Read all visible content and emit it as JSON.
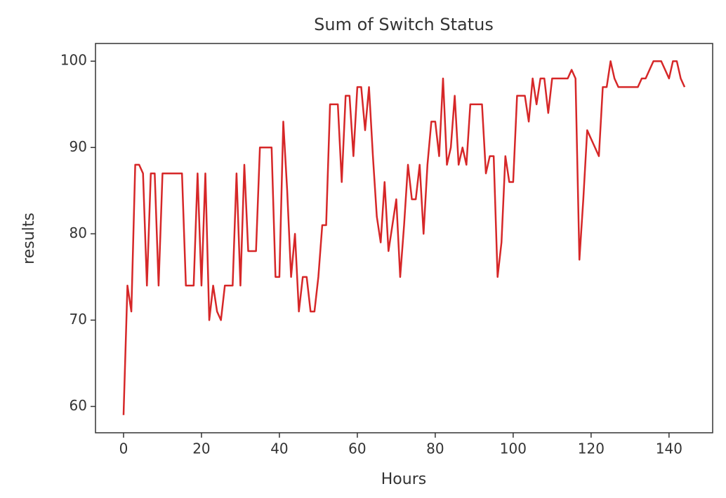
{
  "chart_data": {
    "type": "line",
    "title": "Sum of Switch Status",
    "x_label": "Hours",
    "y_label": "results",
    "x": [
      0,
      1,
      2,
      3,
      4,
      5,
      6,
      7,
      8,
      9,
      10,
      11,
      12,
      13,
      14,
      15,
      16,
      17,
      18,
      19,
      20,
      21,
      22,
      23,
      24,
      25,
      26,
      27,
      28,
      29,
      30,
      31,
      32,
      33,
      34,
      35,
      36,
      37,
      38,
      39,
      40,
      41,
      42,
      43,
      44,
      45,
      46,
      47,
      48,
      49,
      50,
      51,
      52,
      53,
      54,
      55,
      56,
      57,
      58,
      59,
      60,
      61,
      62,
      63,
      64,
      65,
      66,
      67,
      68,
      69,
      70,
      71,
      72,
      73,
      74,
      75,
      76,
      77,
      78,
      79,
      80,
      81,
      82,
      83,
      84,
      85,
      86,
      87,
      88,
      89,
      90,
      91,
      92,
      93,
      94,
      95,
      96,
      97,
      98,
      99,
      100,
      101,
      102,
      103,
      104,
      105,
      106,
      107,
      108,
      109,
      110,
      111,
      112,
      113,
      114,
      115,
      116,
      117,
      118,
      119,
      120,
      121,
      122,
      123,
      124,
      125,
      126,
      127,
      128,
      129,
      130,
      131,
      132,
      133,
      134,
      135,
      136,
      137,
      138,
      139,
      140,
      141,
      142,
      143,
      144
    ],
    "series": [
      {
        "color": "#d62728",
        "values": [
          59,
          74,
          71,
          88,
          88,
          87,
          74,
          87,
          87,
          74,
          87,
          87,
          87,
          87,
          87,
          87,
          74,
          74,
          74,
          87,
          74,
          87,
          70,
          74,
          71,
          70,
          74,
          74,
          74,
          87,
          74,
          88,
          78,
          78,
          78,
          90,
          90,
          90,
          90,
          75,
          75,
          93,
          85,
          75,
          80,
          71,
          75,
          75,
          71,
          71,
          75,
          81,
          81,
          95,
          95,
          95,
          86,
          96,
          96,
          89,
          97,
          97,
          92,
          97,
          89,
          82,
          79,
          86,
          78,
          81,
          84,
          75,
          81,
          88,
          84,
          84,
          88,
          80,
          88,
          93,
          93,
          89,
          98,
          88,
          90,
          96,
          88,
          90,
          88,
          95,
          95,
          95,
          95,
          87,
          89,
          89,
          75,
          79,
          89,
          86,
          86,
          96,
          96,
          96,
          93,
          98,
          95,
          98,
          98,
          94,
          98,
          98,
          98,
          98,
          98,
          99,
          98,
          77,
          84,
          92,
          91,
          90,
          89,
          97,
          97,
          100,
          98,
          97,
          97,
          97,
          97,
          97,
          97,
          98,
          98,
          99,
          100,
          100,
          100,
          99,
          98,
          100,
          100,
          98,
          97
        ]
      }
    ],
    "xlim": [
      -7.2,
      151.2
    ],
    "ylim": [
      56.95,
      102.05
    ],
    "xticks": [
      0,
      20,
      40,
      60,
      80,
      100,
      120,
      140
    ],
    "yticks": [
      60,
      70,
      80,
      90,
      100
    ]
  }
}
